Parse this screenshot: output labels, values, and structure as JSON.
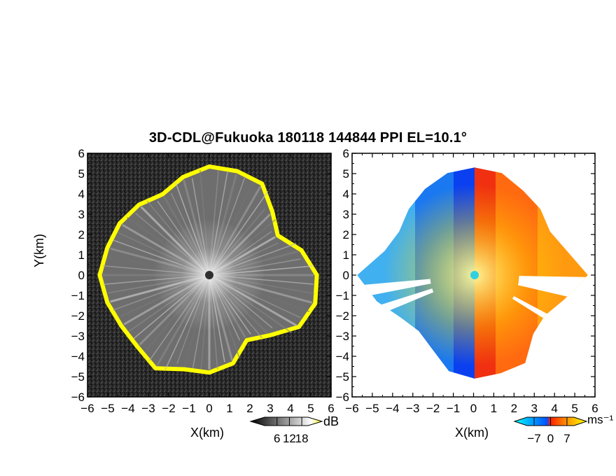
{
  "title": "3D-CDL@Fukuoka 180118 144844 PPI EL=10.1°",
  "chart_data": [
    {
      "type": "heatmap",
      "xlabel": "X(km)",
      "ylabel": "Y(km)",
      "xlim": [
        -6,
        6
      ],
      "ylim": [
        -6,
        6
      ],
      "xticks": [
        "−6",
        "−5",
        "−4",
        "−3",
        "−2",
        "−1",
        "0",
        "1",
        "2",
        "3",
        "4",
        "5",
        "6"
      ],
      "yticks": [
        "6",
        "5",
        "4",
        "3",
        "2",
        "1",
        "0",
        "−1",
        "−2",
        "−3",
        "−4",
        "−5",
        "−6"
      ],
      "colorbar": {
        "unit": "dB",
        "ticks": [
          "6",
          "12",
          "18"
        ],
        "range": [
          0,
          21
        ],
        "colors": [
          "#000000",
          "#ffffff",
          "#ffff00"
        ]
      },
      "radar_center_km": [
        0,
        0
      ],
      "echo_edge_radius_km": [
        [
          0,
          5.35
        ],
        [
          15,
          5.3
        ],
        [
          30,
          5.2
        ],
        [
          45,
          4.4
        ],
        [
          60,
          3.9
        ],
        [
          75,
          4.7
        ],
        [
          90,
          5.3
        ],
        [
          105,
          5.4
        ],
        [
          120,
          5.1
        ],
        [
          135,
          4.2
        ],
        [
          150,
          3.7
        ],
        [
          165,
          4.5
        ],
        [
          180,
          4.8
        ],
        [
          195,
          4.8
        ],
        [
          210,
          5.3
        ],
        [
          225,
          5.0
        ],
        [
          240,
          5.0
        ],
        [
          255,
          5.2
        ],
        [
          270,
          5.4
        ],
        [
          285,
          5.2
        ],
        [
          300,
          5.1
        ],
        [
          315,
          4.9
        ],
        [
          330,
          4.6
        ],
        [
          345,
          5.0
        ]
      ]
    },
    {
      "type": "heatmap",
      "xlabel": "X(km)",
      "ylabel": "",
      "xlim": [
        -6,
        6
      ],
      "ylim": [
        -6,
        6
      ],
      "xticks": [
        "−6",
        "−5",
        "−4",
        "−3",
        "−2",
        "−1",
        "0",
        "1",
        "2",
        "3",
        "4",
        "5",
        "6"
      ],
      "yticks": [
        "6",
        "5",
        "4",
        "3",
        "2",
        "1",
        "0",
        "−1",
        "−2",
        "−3",
        "−4",
        "−5",
        "−6"
      ],
      "colorbar": {
        "unit": "ms⁻¹",
        "ticks": [
          "−7",
          "0",
          "7"
        ],
        "range": [
          -10,
          10
        ],
        "colors": [
          "#00ffff",
          "#0050ff",
          "#ff2000",
          "#ffa000",
          "#ffff00"
        ]
      },
      "velocity_pattern": "negative (towards radar) west of X=0, positive (away) east of X=0",
      "echo_edge_radius_km": [
        [
          0,
          5.3
        ],
        [
          15,
          5.2
        ],
        [
          30,
          4.8
        ],
        [
          45,
          4.6
        ],
        [
          60,
          4.3
        ],
        [
          75,
          4.7
        ],
        [
          90,
          5.6
        ],
        [
          105,
          4.6
        ],
        [
          120,
          4.0
        ],
        [
          135,
          4.1
        ],
        [
          150,
          5.0
        ],
        [
          165,
          5.0
        ],
        [
          180,
          5.1
        ],
        [
          195,
          4.9
        ],
        [
          210,
          4.2
        ],
        [
          225,
          3.9
        ],
        [
          240,
          4.2
        ],
        [
          255,
          5.0
        ],
        [
          270,
          5.8
        ],
        [
          285,
          4.6
        ],
        [
          300,
          4.3
        ],
        [
          315,
          4.6
        ],
        [
          330,
          4.9
        ],
        [
          345,
          5.2
        ]
      ]
    }
  ]
}
